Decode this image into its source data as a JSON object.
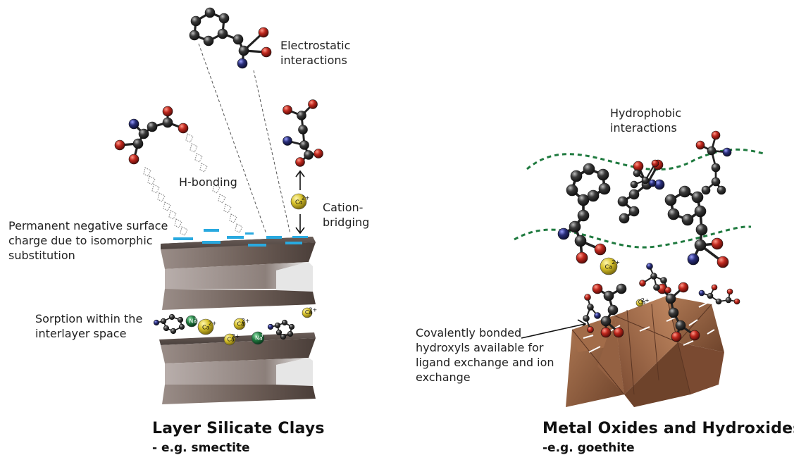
{
  "labels": {
    "electrostatic": [
      "Electrostatic",
      "interactions"
    ],
    "h_bonding": "H-bonding",
    "cation_bridging": [
      "Cation-",
      "bridging"
    ],
    "permanent_charge": [
      "Permanent negative surface",
      "charge due to isomorphic",
      "substitution"
    ],
    "sorption": [
      "Sorption within the",
      "interlayer space"
    ],
    "hydrophobic": [
      "Hydrophobic",
      "interactions"
    ],
    "covalent": [
      "Covalently bonded",
      "hydroxyls available for",
      "ligand exchange and ion",
      "exchange"
    ]
  },
  "titles": {
    "left_title": "Layer Silicate Clays",
    "left_sub": "- e.g. smectite",
    "right_title": "Metal Oxides and Hydroxides",
    "right_sub": "-e.g. goethite"
  },
  "ions": {
    "ca": "Ca",
    "ca_charge": "2+",
    "na": "Na",
    "na_charge": "+"
  },
  "colors": {
    "carbon": "#333333",
    "oxygen": "#c0281e",
    "nitrogen": "#2a2f7a",
    "calcium": "#d8c22a",
    "sodium": "#1f7a3f",
    "surface_charge": "#29a9df",
    "clay_dark": "#5a4e4a",
    "clay_light": "#d7d7d7",
    "goethite": "#8a5a3e",
    "hydrophobic_line": "#1f7a3f"
  }
}
